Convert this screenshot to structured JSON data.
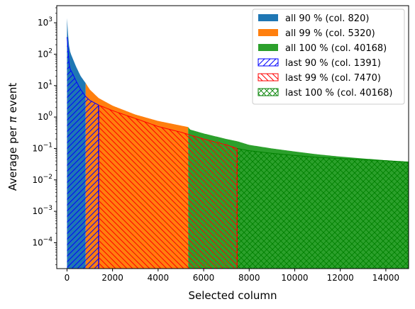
{
  "chart_data": {
    "type": "area",
    "xlabel": "Selected column",
    "ylabel_prefix": "Average per ",
    "ylabel_symbol": "π",
    "ylabel_suffix": " event",
    "xlim": [
      -450,
      15000
    ],
    "ylim": [
      1.5e-05,
      3500
    ],
    "yscale": "log",
    "grid": false,
    "legend_placement": "top-right",
    "x_ticks": [
      {
        "value": 0,
        "label": "0"
      },
      {
        "value": 2000,
        "label": "2000"
      },
      {
        "value": 4000,
        "label": "4000"
      },
      {
        "value": 6000,
        "label": "6000"
      },
      {
        "value": 8000,
        "label": "8000"
      },
      {
        "value": 10000,
        "label": "10000"
      },
      {
        "value": 12000,
        "label": "12000"
      },
      {
        "value": 14000,
        "label": "14000"
      }
    ],
    "y_ticks": [
      {
        "value": 0.0001,
        "base": "10",
        "exp": "−4"
      },
      {
        "value": 0.001,
        "base": "10",
        "exp": "−3"
      },
      {
        "value": 0.01,
        "base": "10",
        "exp": "−2"
      },
      {
        "value": 0.1,
        "base": "10",
        "exp": "−1"
      },
      {
        "value": 1,
        "base": "10",
        "exp": "0"
      },
      {
        "value": 10,
        "base": "10",
        "exp": "1"
      },
      {
        "value": 100,
        "base": "10",
        "exp": "2"
      },
      {
        "value": 1000,
        "base": "10",
        "exp": "3"
      }
    ],
    "all_profile": {
      "x": [
        0,
        60,
        100,
        150,
        200,
        300,
        400,
        600,
        820,
        1000,
        1391,
        2000,
        3000,
        4000,
        5320,
        5400,
        6000,
        7000,
        7470,
        8000,
        9000,
        10000,
        11000,
        12000,
        13000,
        14000,
        15000
      ],
      "y": [
        1400,
        300,
        160,
        110,
        90,
        60,
        40,
        20,
        12,
        7.5,
        4,
        2.3,
        1.2,
        0.75,
        0.48,
        0.4,
        0.3,
        0.2,
        0.17,
        0.13,
        0.1,
        0.08,
        0.065,
        0.055,
        0.048,
        0.042,
        0.036
      ]
    },
    "last_profile": {
      "x": [
        0,
        60,
        100,
        150,
        200,
        300,
        400,
        600,
        820,
        1000,
        1391,
        2000,
        3000,
        4000,
        5000,
        5320,
        6000,
        7000,
        7470,
        8000,
        9000,
        10000,
        11000,
        12000,
        13000,
        14000,
        15000
      ],
      "y": [
        350,
        120,
        40,
        32,
        28,
        20,
        14,
        7.5,
        4.5,
        3.4,
        2.4,
        1.6,
        0.9,
        0.5,
        0.33,
        0.28,
        0.2,
        0.13,
        0.1,
        0.085,
        0.07,
        0.06,
        0.052,
        0.048,
        0.044,
        0.041,
        0.037
      ]
    },
    "series": [
      {
        "name": "all 90 % (col. 820)",
        "color": "#1f77b4",
        "style": "solid",
        "x_range": [
          0,
          820
        ]
      },
      {
        "name": "all 99 % (col. 5320)",
        "color": "#ff7f0e",
        "style": "solid",
        "x_range": [
          820,
          5320
        ]
      },
      {
        "name": "all 100 % (col. 40168)",
        "color": "#2ca02c",
        "style": "solid",
        "x_range": [
          5320,
          15000
        ]
      },
      {
        "name": "last 90 % (col. 1391)",
        "color": "#0000ff",
        "style": "hatch-diagonal",
        "x_range": [
          0,
          1391
        ]
      },
      {
        "name": "last 99 % (col. 7470)",
        "color": "#ff0000",
        "style": "hatch-diagonal",
        "x_range": [
          1391,
          7470
        ]
      },
      {
        "name": "last 100 % (col. 40168)",
        "color": "#008000",
        "style": "hatch-cross",
        "x_range": [
          7470,
          15000
        ]
      }
    ]
  }
}
